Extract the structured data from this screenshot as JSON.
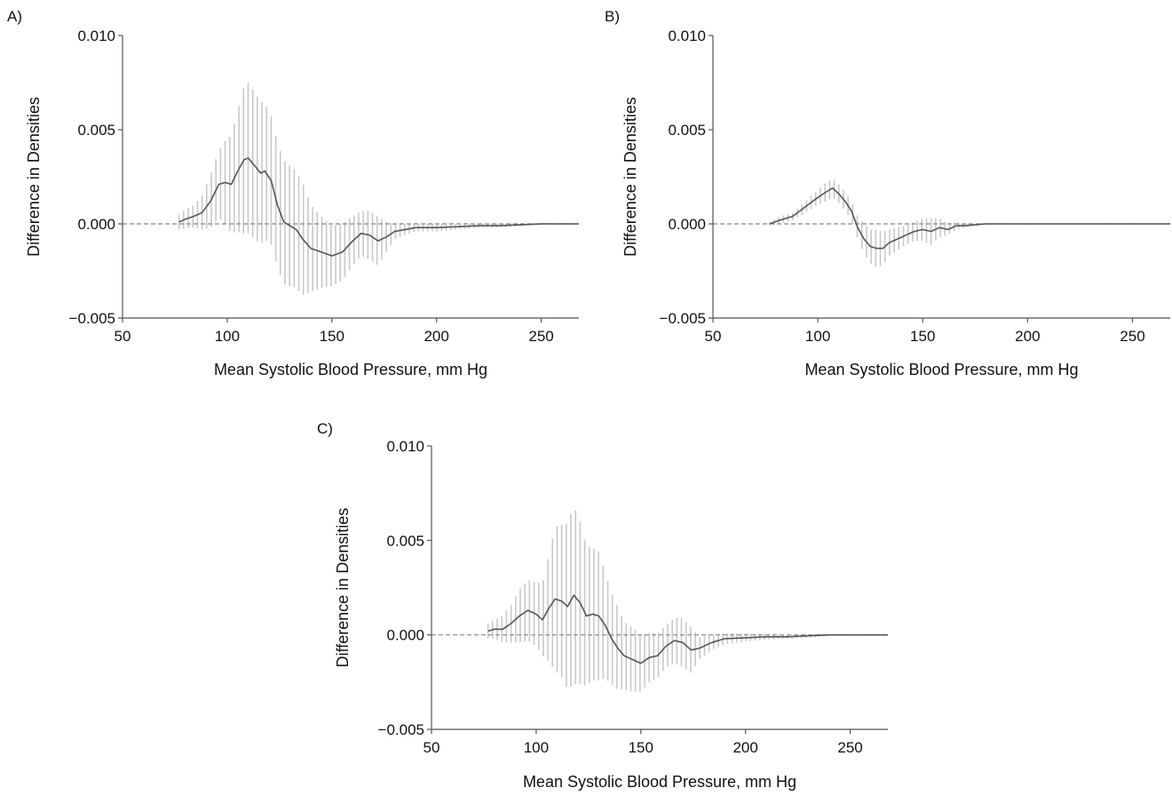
{
  "colors": {
    "line": "#555555",
    "error_bars": "#c8c8c8",
    "zero_line": "#888888",
    "axis": "#555555"
  },
  "chart_data": [
    {
      "type": "line",
      "panel_label": "A)",
      "xlabel": "Mean Systolic Blood Pressure, mm Hg",
      "ylabel": "Difference in Densities",
      "xlim": [
        50,
        268
      ],
      "ylim": [
        -0.005,
        0.01
      ],
      "xticks": [
        50,
        100,
        150,
        200,
        250
      ],
      "yticks": [
        -0.005,
        0.0,
        0.005,
        0.01
      ],
      "xtick_labels": [
        "50",
        "100",
        "150",
        "200",
        "250"
      ],
      "ytick_labels": [
        "−0.005",
        "0.000",
        "0.005",
        "0.010"
      ],
      "reference_line": 0,
      "reference_line_style": "dashed",
      "series": [
        {
          "x": [
            77,
            80,
            84,
            88,
            92,
            96,
            99,
            102,
            105,
            108,
            110,
            113,
            116,
            118,
            121,
            124,
            127,
            130,
            133,
            136,
            140,
            145,
            150,
            155,
            160,
            164,
            168,
            172,
            176,
            180,
            185,
            190,
            200,
            210,
            220,
            230,
            240,
            250,
            268
          ],
          "y": [
            0.0001,
            0.00025,
            0.0004,
            0.0006,
            0.0012,
            0.0021,
            0.0022,
            0.0021,
            0.0028,
            0.0034,
            0.0035,
            0.0031,
            0.0027,
            0.0028,
            0.0023,
            0.001,
            0.0001,
            -0.0001,
            -0.0003,
            -0.0008,
            -0.0013,
            -0.0015,
            -0.0017,
            -0.0015,
            -0.0009,
            -0.0005,
            -0.0006,
            -0.0009,
            -0.0007,
            -0.0004,
            -0.0003,
            -0.0002,
            -0.0002,
            -0.00015,
            -0.0001,
            -0.0001,
            -5e-05,
            0.0,
            0.0
          ],
          "ci_half_width": [
            0.0004,
            0.0005,
            0.0006,
            0.0009,
            0.0014,
            0.0018,
            0.0022,
            0.0026,
            0.0032,
            0.0039,
            0.004,
            0.0039,
            0.0038,
            0.0036,
            0.0034,
            0.0033,
            0.0033,
            0.0032,
            0.0031,
            0.003,
            0.0023,
            0.0019,
            0.0016,
            0.0015,
            0.0013,
            0.0012,
            0.0013,
            0.0013,
            0.0008,
            0.0004,
            0.0003,
            0.0002,
            0.0002,
            0.00015,
            0.0001,
            0.0001,
            5e-05,
            5e-05,
            5e-05
          ]
        }
      ]
    },
    {
      "type": "line",
      "panel_label": "B)",
      "xlabel": "Mean Systolic Blood Pressure, mm Hg",
      "ylabel": "Difference in Densities",
      "xlim": [
        50,
        268
      ],
      "ylim": [
        -0.005,
        0.01
      ],
      "xticks": [
        50,
        100,
        150,
        200,
        250
      ],
      "yticks": [
        -0.005,
        0.0,
        0.005,
        0.01
      ],
      "xtick_labels": [
        "50",
        "100",
        "150",
        "200",
        "250"
      ],
      "ytick_labels": [
        "−0.005",
        "0.000",
        "0.005",
        "0.010"
      ],
      "reference_line": 0,
      "reference_line_style": "dashed",
      "series": [
        {
          "x": [
            77,
            82,
            88,
            94,
            100,
            104,
            107,
            110,
            113,
            116,
            119,
            122,
            125,
            128,
            131,
            134,
            138,
            142,
            146,
            150,
            154,
            158,
            162,
            166,
            170,
            180,
            200,
            220,
            240,
            268
          ],
          "y": [
            0.0,
            0.0002,
            0.0004,
            0.0009,
            0.0014,
            0.0017,
            0.0019,
            0.0016,
            0.0012,
            0.0007,
            -0.0002,
            -0.0008,
            -0.0012,
            -0.0013,
            -0.0013,
            -0.001,
            -0.0008,
            -0.0006,
            -0.0004,
            -0.0003,
            -0.0004,
            -0.0002,
            -0.0003,
            -0.0001,
            -0.0001,
            0.0,
            0.0,
            0.0,
            0.0,
            0.0
          ],
          "ci_half_width": [
            0.0001,
            0.0002,
            0.0002,
            0.0003,
            0.0004,
            0.0005,
            0.0005,
            0.0005,
            0.0005,
            0.0005,
            0.0006,
            0.0008,
            0.0009,
            0.001,
            0.0009,
            0.0007,
            0.0006,
            0.0005,
            0.0005,
            0.0006,
            0.0007,
            0.0005,
            0.0003,
            0.0002,
            0.0001,
            5e-05,
            0.0,
            0.0,
            0.0,
            0.0
          ]
        }
      ]
    },
    {
      "type": "line",
      "panel_label": "C)",
      "xlabel": "Mean Systolic Blood Pressure, mm Hg",
      "ylabel": "Difference in Densities",
      "xlim": [
        50,
        268
      ],
      "ylim": [
        -0.005,
        0.01
      ],
      "xticks": [
        50,
        100,
        150,
        200,
        250
      ],
      "yticks": [
        -0.005,
        0.0,
        0.005,
        0.01
      ],
      "xtick_labels": [
        "50",
        "100",
        "150",
        "200",
        "250"
      ],
      "ytick_labels": [
        "−0.005",
        "0.000",
        "0.005",
        "0.010"
      ],
      "reference_line": 0,
      "reference_line_style": "dashed",
      "series": [
        {
          "x": [
            77,
            80,
            84,
            88,
            92,
            96,
            100,
            103,
            106,
            109,
            112,
            115,
            118,
            121,
            124,
            127,
            130,
            133,
            136,
            139,
            142,
            146,
            150,
            154,
            158,
            162,
            166,
            170,
            174,
            178,
            184,
            190,
            200,
            210,
            220,
            230,
            240,
            250,
            268
          ],
          "y": [
            0.0002,
            0.0003,
            0.0003,
            0.0006,
            0.001,
            0.0013,
            0.0011,
            0.0008,
            0.0014,
            0.0019,
            0.0018,
            0.0015,
            0.0021,
            0.0017,
            0.001,
            0.0011,
            0.001,
            0.0005,
            -0.0002,
            -0.0007,
            -0.0011,
            -0.0013,
            -0.0015,
            -0.0012,
            -0.0011,
            -0.0006,
            -0.0003,
            -0.0004,
            -0.0008,
            -0.0007,
            -0.0004,
            -0.0002,
            -0.00015,
            -0.0001,
            -0.0001,
            -5e-05,
            0.0,
            0.0,
            0.0
          ],
          "ci_half_width": [
            0.0004,
            0.0005,
            0.0007,
            0.001,
            0.0014,
            0.0016,
            0.0017,
            0.0019,
            0.0028,
            0.0038,
            0.004,
            0.0044,
            0.0047,
            0.0043,
            0.0037,
            0.0035,
            0.0034,
            0.0028,
            0.0024,
            0.0022,
            0.0018,
            0.0017,
            0.0015,
            0.0013,
            0.0012,
            0.0011,
            0.0012,
            0.0013,
            0.0012,
            0.0006,
            0.0004,
            0.0003,
            0.0002,
            0.00015,
            0.0001,
            0.0001,
            5e-05,
            5e-05,
            5e-05
          ]
        }
      ]
    }
  ]
}
